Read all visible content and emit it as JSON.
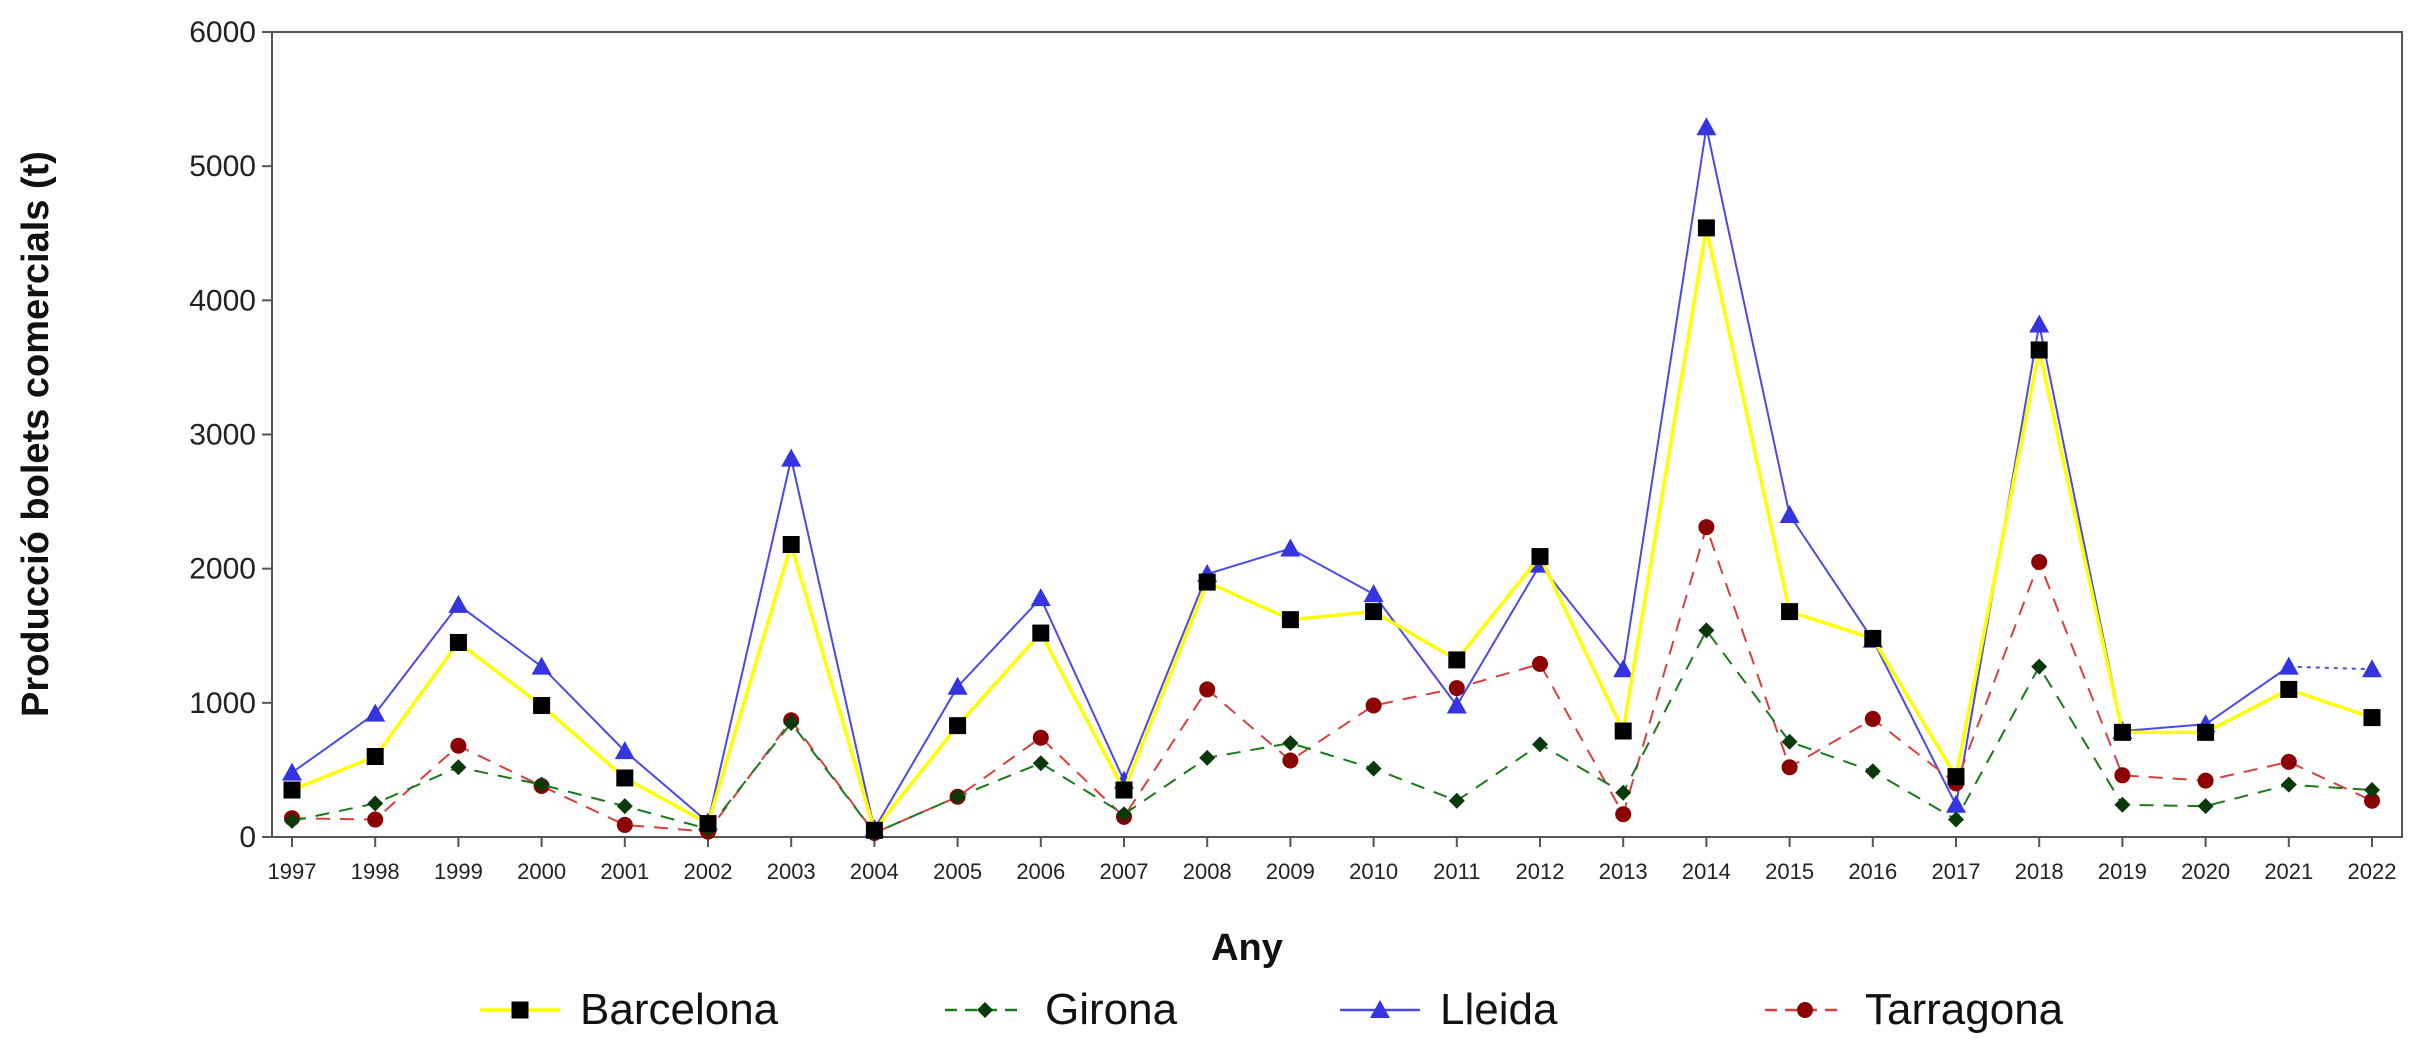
{
  "chart_data": {
    "type": "line",
    "title": "",
    "xlabel": "Any",
    "ylabel": "Producció bolets comercials (t)",
    "ylim": [
      0,
      6000
    ],
    "yticks": [
      "0",
      "1000",
      "2000",
      "3000",
      "4000",
      "5000",
      "6000"
    ],
    "categories": [
      "1997",
      "1998",
      "1999",
      "2000",
      "2001",
      "2002",
      "2003",
      "2004",
      "2005",
      "2006",
      "2007",
      "2008",
      "2009",
      "2010",
      "2011",
      "2012",
      "2013",
      "2014",
      "2015",
      "2016",
      "2017",
      "2018",
      "2019",
      "2020",
      "2021",
      "2022"
    ],
    "grid": false,
    "legend_position": "bottom",
    "series": [
      {
        "name": "Barcelona",
        "line_color": "#ffff00",
        "marker_color": "#000000",
        "marker": "square",
        "dash": "solid",
        "values": [
          350,
          600,
          1450,
          980,
          440,
          100,
          2180,
          50,
          830,
          1520,
          350,
          1900,
          1620,
          1680,
          1320,
          2090,
          790,
          4540,
          1680,
          1480,
          450,
          3630,
          780,
          780,
          1100,
          890
        ]
      },
      {
        "name": "Girona",
        "line_color": "#1a7a1a",
        "marker_color": "#0a3a0a",
        "marker": "diamond",
        "dash": "dashed",
        "values": [
          120,
          250,
          520,
          390,
          230,
          60,
          850,
          30,
          300,
          550,
          170,
          590,
          700,
          510,
          270,
          690,
          330,
          1540,
          710,
          490,
          130,
          1270,
          240,
          230,
          390,
          350
        ]
      },
      {
        "name": "Lleida",
        "line_color": "#4a4ae8",
        "marker_color": "#3535e0",
        "marker": "triangle",
        "dash": "solid",
        "dash_tail_from": 24,
        "values": [
          480,
          920,
          1730,
          1270,
          640,
          110,
          2820,
          60,
          1120,
          1780,
          420,
          1960,
          2150,
          1810,
          980,
          2030,
          1250,
          5290,
          2400,
          1470,
          240,
          3820,
          790,
          840,
          1270,
          1250
        ]
      },
      {
        "name": "Tarragona",
        "line_color": "#d84040",
        "marker_color": "#8b0000",
        "marker": "circle",
        "dash": "dashed",
        "values": [
          140,
          130,
          680,
          380,
          90,
          40,
          870,
          30,
          300,
          740,
          150,
          1100,
          570,
          980,
          1110,
          1290,
          170,
          2310,
          520,
          880,
          400,
          2050,
          460,
          420,
          560,
          270
        ]
      }
    ]
  }
}
